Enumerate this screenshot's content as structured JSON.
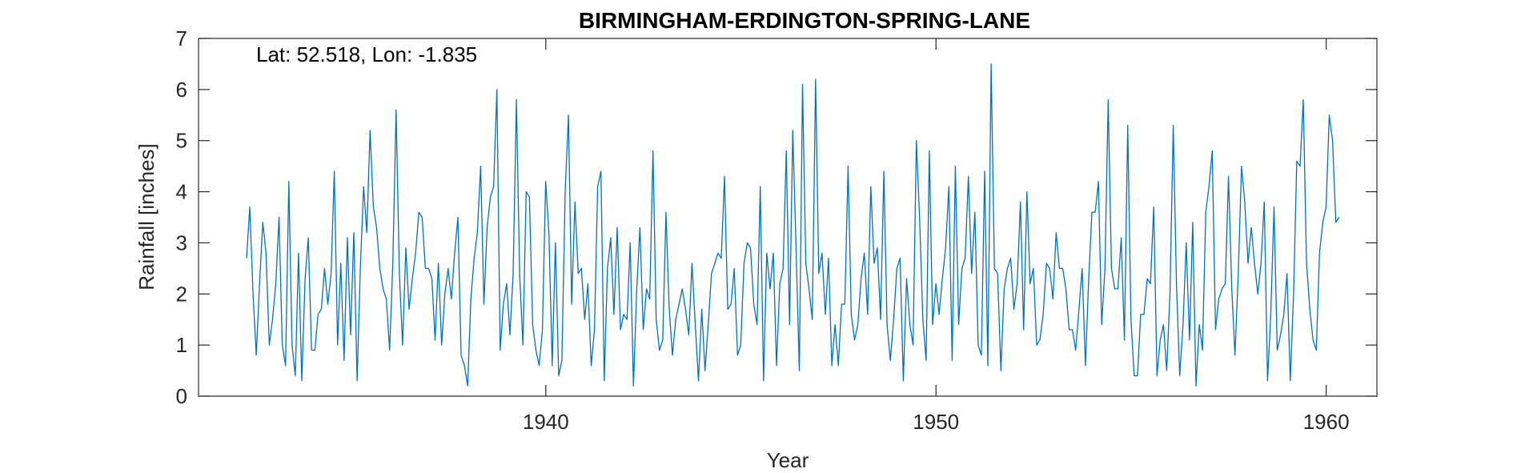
{
  "chart_data": {
    "type": "line",
    "title": "BIRMINGHAM-ERDINGTON-SPRING-LANE",
    "annotation": "Lat: 52.518, Lon: -1.835",
    "xlabel": "Year",
    "ylabel": "Rainfall [inches]",
    "xlim": [
      1931.1,
      1961.3
    ],
    "ylim": [
      0,
      7
    ],
    "xticks": [
      1940,
      1950,
      1960
    ],
    "yticks": [
      0,
      1,
      2,
      3,
      4,
      5,
      6,
      7
    ],
    "grid": false,
    "line_color": "#0072BD",
    "series": [
      {
        "x_start": 1932.33,
        "x_step": 0.0833333,
        "values": [
          2.7,
          3.7,
          2.0,
          0.8,
          2.2,
          3.4,
          2.8,
          1.0,
          1.5,
          2.2,
          3.5,
          1.0,
          0.6,
          4.2,
          1.0,
          0.4,
          2.8,
          0.3,
          2.3,
          3.1,
          0.9,
          0.9,
          1.6,
          1.7,
          2.5,
          1.8,
          2.4,
          4.4,
          1.0,
          2.6,
          0.7,
          3.1,
          1.2,
          3.2,
          0.3,
          2.5,
          4.1,
          3.2,
          5.2,
          3.7,
          3.3,
          2.5,
          2.1,
          1.9,
          0.9,
          2.6,
          5.6,
          2.4,
          1.0,
          2.9,
          1.7,
          2.3,
          2.8,
          3.6,
          3.5,
          2.5,
          2.5,
          2.3,
          1.1,
          2.6,
          1.0,
          2.0,
          2.5,
          1.9,
          2.8,
          3.5,
          0.8,
          0.6,
          0.2,
          1.9,
          2.7,
          3.2,
          4.5,
          1.8,
          3.3,
          3.9,
          4.1,
          6.0,
          0.9,
          1.8,
          2.2,
          1.2,
          2.4,
          5.8,
          2.4,
          1.0,
          4.0,
          3.9,
          1.4,
          0.9,
          0.6,
          1.3,
          4.2,
          3.2,
          0.6,
          3.0,
          0.4,
          0.7,
          4.0,
          5.5,
          1.8,
          3.8,
          2.4,
          2.5,
          1.5,
          2.2,
          0.6,
          1.3,
          4.1,
          4.4,
          0.3,
          2.5,
          3.1,
          1.6,
          3.3,
          1.3,
          1.6,
          1.5,
          3.0,
          0.2,
          2.1,
          3.3,
          1.3,
          2.1,
          1.9,
          4.8,
          1.5,
          0.9,
          1.1,
          3.6,
          1.7,
          0.8,
          1.5,
          1.8,
          2.1,
          1.7,
          1.2,
          2.6,
          1.4,
          0.3,
          1.7,
          0.5,
          1.4,
          2.4,
          2.6,
          2.8,
          2.7,
          4.3,
          1.7,
          1.8,
          2.5,
          0.8,
          1.0,
          2.6,
          3.0,
          2.9,
          1.8,
          1.4,
          4.1,
          0.3,
          2.8,
          2.1,
          2.8,
          0.6,
          2.2,
          2.5,
          4.8,
          1.4,
          5.2,
          2.9,
          0.5,
          6.1,
          2.6,
          2.1,
          1.5,
          6.2,
          2.4,
          2.8,
          1.6,
          2.7,
          0.6,
          1.4,
          0.6,
          1.8,
          1.8,
          4.5,
          1.6,
          1.1,
          1.4,
          2.3,
          2.8,
          1.6,
          4.1,
          2.6,
          2.9,
          1.5,
          4.4,
          1.4,
          0.7,
          1.5,
          2.5,
          2.7,
          0.3,
          2.3,
          1.4,
          1.0,
          5.0,
          3.5,
          1.5,
          0.7,
          4.8,
          1.4,
          2.2,
          1.6,
          2.3,
          2.9,
          4.1,
          0.7,
          4.5,
          1.4,
          2.5,
          2.7,
          4.3,
          2.4,
          3.6,
          1.0,
          0.8,
          4.4,
          0.6,
          6.5,
          2.5,
          2.4,
          0.5,
          2.1,
          2.5,
          2.7,
          1.7,
          2.2,
          3.8,
          1.3,
          4.0,
          2.2,
          2.5,
          1.0,
          1.1,
          1.6,
          2.6,
          2.5,
          1.9,
          3.2,
          2.5,
          2.5,
          2.1,
          1.3,
          1.3,
          0.9,
          1.7,
          2.5,
          0.6,
          2.3,
          3.6,
          3.6,
          4.2,
          1.4,
          2.5,
          5.8,
          2.5,
          2.1,
          2.1,
          3.1,
          1.1,
          5.3,
          1.5,
          0.4,
          0.4,
          1.6,
          1.6,
          2.3,
          2.2,
          3.7,
          0.4,
          1.1,
          1.4,
          0.5,
          2.0,
          5.3,
          2.2,
          0.4,
          1.4,
          3.0,
          1.1,
          3.4,
          0.2,
          1.4,
          0.9,
          3.6,
          4.1,
          4.8,
          1.3,
          1.9,
          2.1,
          2.2,
          4.3,
          2.1,
          0.8,
          2.4,
          4.5,
          3.8,
          2.6,
          3.3,
          2.6,
          2.0,
          2.6,
          3.8,
          0.3,
          1.6,
          3.7,
          0.9,
          1.2,
          1.6,
          2.4,
          0.3,
          2.0,
          4.6,
          4.5,
          5.8,
          2.6,
          1.7,
          1.1,
          0.9,
          2.8,
          3.4,
          3.7,
          5.5,
          5.0,
          3.4,
          3.5
        ]
      }
    ]
  }
}
